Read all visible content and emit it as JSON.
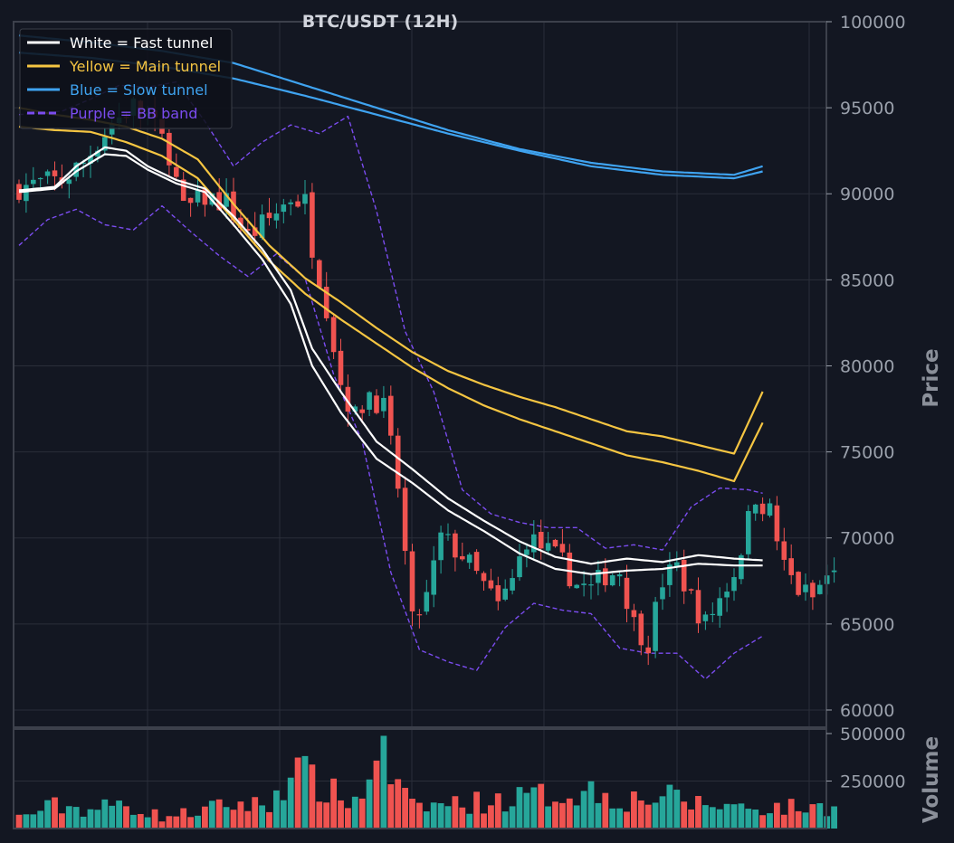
{
  "chart_data": {
    "type": "candlestick",
    "title": "BTC/USDT (12H)",
    "ylabel": "Price",
    "volume_label": "Volume",
    "ylim": [
      59000,
      100000
    ],
    "yticks": [
      60000,
      65000,
      70000,
      75000,
      80000,
      85000,
      90000,
      95000,
      100000
    ],
    "vol_ylim": [
      0,
      500000
    ],
    "vol_yticks": [
      250000,
      500000
    ],
    "grid": true,
    "legend_position": "top-left",
    "legend": [
      {
        "label": "White = Fast tunnel",
        "color": "#ffffff",
        "style": "solid"
      },
      {
        "label": "Yellow = Main tunnel",
        "color": "#f5c542",
        "style": "solid"
      },
      {
        "label": "Blue = Slow tunnel",
        "color": "#3fa3f0",
        "style": "solid"
      },
      {
        "label": "Purple = BB band",
        "color": "#7b4cf0",
        "style": "dashed"
      }
    ],
    "colors": {
      "up": "#26a69a",
      "down": "#ef5350",
      "bg": "#131722",
      "grid": "#2a2e39",
      "frame": "#3c404b"
    },
    "ohlc_knots": [
      [
        0,
        90400
      ],
      [
        3,
        90600
      ],
      [
        6,
        90800
      ],
      [
        9,
        91800
      ],
      [
        11,
        93000
      ],
      [
        13,
        94100
      ],
      [
        16,
        95100
      ],
      [
        18,
        94500
      ],
      [
        21,
        92400
      ],
      [
        23,
        89000
      ],
      [
        26,
        89800
      ],
      [
        29,
        89500
      ],
      [
        32,
        87500
      ],
      [
        35,
        88500
      ],
      [
        38,
        89800
      ],
      [
        40,
        89500
      ],
      [
        41,
        87000
      ],
      [
        43,
        83500
      ],
      [
        45,
        79000
      ],
      [
        47,
        77000
      ],
      [
        49,
        78500
      ],
      [
        51,
        77500
      ],
      [
        53,
        73000
      ],
      [
        55,
        65000
      ],
      [
        57,
        66500
      ],
      [
        59,
        70000
      ],
      [
        62,
        69000
      ],
      [
        65,
        67200
      ],
      [
        67,
        66000
      ],
      [
        69,
        67500
      ],
      [
        71,
        70000
      ],
      [
        73,
        69500
      ],
      [
        76,
        68500
      ],
      [
        78,
        67300
      ],
      [
        80,
        67000
      ],
      [
        82,
        67900
      ],
      [
        84,
        68100
      ],
      [
        86,
        65000
      ],
      [
        88,
        64000
      ],
      [
        90,
        67500
      ],
      [
        92,
        68300
      ],
      [
        94,
        66500
      ],
      [
        96,
        65000
      ],
      [
        98,
        66500
      ],
      [
        100,
        68000
      ],
      [
        103,
        72500
      ],
      [
        105,
        71500
      ],
      [
        107,
        68300
      ],
      [
        109,
        67000
      ],
      [
        111,
        66500
      ],
      [
        113,
        67800
      ]
    ],
    "fast_tunnel_upper": [
      [
        0,
        90200
      ],
      [
        5,
        90400
      ],
      [
        8,
        91600
      ],
      [
        12,
        92700
      ],
      [
        15,
        92500
      ],
      [
        18,
        91600
      ],
      [
        22,
        90800
      ],
      [
        26,
        90300
      ],
      [
        30,
        88700
      ],
      [
        34,
        86800
      ],
      [
        38,
        84400
      ],
      [
        41,
        81000
      ],
      [
        45,
        78500
      ],
      [
        50,
        75600
      ],
      [
        55,
        74000
      ],
      [
        60,
        72300
      ],
      [
        65,
        71000
      ],
      [
        70,
        69800
      ],
      [
        75,
        68900
      ],
      [
        80,
        68500
      ],
      [
        85,
        68800
      ],
      [
        90,
        68600
      ],
      [
        95,
        69000
      ],
      [
        100,
        68800
      ],
      [
        104,
        68700
      ]
    ],
    "fast_tunnel_lower": [
      [
        0,
        90100
      ],
      [
        5,
        90300
      ],
      [
        8,
        91300
      ],
      [
        12,
        92300
      ],
      [
        15,
        92200
      ],
      [
        18,
        91400
      ],
      [
        22,
        90600
      ],
      [
        26,
        90100
      ],
      [
        30,
        88200
      ],
      [
        34,
        86200
      ],
      [
        38,
        83600
      ],
      [
        41,
        80000
      ],
      [
        45,
        77300
      ],
      [
        50,
        74600
      ],
      [
        55,
        73200
      ],
      [
        60,
        71600
      ],
      [
        65,
        70400
      ],
      [
        70,
        69100
      ],
      [
        75,
        68200
      ],
      [
        80,
        67900
      ],
      [
        85,
        68100
      ],
      [
        90,
        68200
      ],
      [
        95,
        68500
      ],
      [
        100,
        68400
      ],
      [
        104,
        68400
      ]
    ],
    "main_tunnel_upper": [
      [
        0,
        95000
      ],
      [
        5,
        94600
      ],
      [
        10,
        94300
      ],
      [
        15,
        93900
      ],
      [
        20,
        93200
      ],
      [
        25,
        92000
      ],
      [
        30,
        89400
      ],
      [
        35,
        87000
      ],
      [
        40,
        85100
      ],
      [
        45,
        83700
      ],
      [
        50,
        82200
      ],
      [
        55,
        80800
      ],
      [
        60,
        79700
      ],
      [
        65,
        78900
      ],
      [
        70,
        78200
      ],
      [
        75,
        77600
      ],
      [
        80,
        76900
      ],
      [
        85,
        76200
      ],
      [
        90,
        75900
      ],
      [
        95,
        75400
      ],
      [
        100,
        74900
      ],
      [
        104,
        78500
      ]
    ],
    "main_tunnel_lower": [
      [
        0,
        93900
      ],
      [
        5,
        93700
      ],
      [
        10,
        93600
      ],
      [
        15,
        93000
      ],
      [
        20,
        92200
      ],
      [
        25,
        90900
      ],
      [
        30,
        88500
      ],
      [
        35,
        86100
      ],
      [
        40,
        84200
      ],
      [
        45,
        82700
      ],
      [
        50,
        81300
      ],
      [
        55,
        79900
      ],
      [
        60,
        78700
      ],
      [
        65,
        77700
      ],
      [
        70,
        76900
      ],
      [
        75,
        76200
      ],
      [
        80,
        75500
      ],
      [
        85,
        74800
      ],
      [
        90,
        74400
      ],
      [
        95,
        73900
      ],
      [
        100,
        73300
      ],
      [
        104,
        76700
      ]
    ],
    "slow_tunnel_upper": [
      [
        0,
        99200
      ],
      [
        10,
        98800
      ],
      [
        20,
        98300
      ],
      [
        30,
        97600
      ],
      [
        40,
        96300
      ],
      [
        50,
        95000
      ],
      [
        60,
        93700
      ],
      [
        70,
        92600
      ],
      [
        80,
        91800
      ],
      [
        90,
        91300
      ],
      [
        100,
        91100
      ],
      [
        104,
        91600
      ]
    ],
    "slow_tunnel_lower": [
      [
        0,
        98200
      ],
      [
        10,
        97900
      ],
      [
        20,
        97400
      ],
      [
        30,
        96700
      ],
      [
        40,
        95700
      ],
      [
        50,
        94600
      ],
      [
        60,
        93500
      ],
      [
        70,
        92500
      ],
      [
        80,
        91600
      ],
      [
        90,
        91100
      ],
      [
        100,
        90900
      ],
      [
        104,
        91300
      ]
    ],
    "bb_upper": [
      [
        0,
        94600
      ],
      [
        6,
        94800
      ],
      [
        10,
        95500
      ],
      [
        14,
        96300
      ],
      [
        18,
        96200
      ],
      [
        22,
        96500
      ],
      [
        26,
        94200
      ],
      [
        30,
        91600
      ],
      [
        34,
        93000
      ],
      [
        38,
        94000
      ],
      [
        42,
        93500
      ],
      [
        46,
        94500
      ],
      [
        50,
        89000
      ],
      [
        54,
        82000
      ],
      [
        58,
        78500
      ],
      [
        62,
        72800
      ],
      [
        66,
        71400
      ],
      [
        70,
        70900
      ],
      [
        74,
        70600
      ],
      [
        78,
        70600
      ],
      [
        82,
        69400
      ],
      [
        86,
        69600
      ],
      [
        90,
        69300
      ],
      [
        94,
        71800
      ],
      [
        98,
        72900
      ],
      [
        102,
        72800
      ],
      [
        104,
        72600
      ]
    ],
    "bb_lower": [
      [
        0,
        87000
      ],
      [
        4,
        88500
      ],
      [
        8,
        89100
      ],
      [
        12,
        88200
      ],
      [
        16,
        87900
      ],
      [
        20,
        89300
      ],
      [
        24,
        87800
      ],
      [
        28,
        86400
      ],
      [
        32,
        85200
      ],
      [
        36,
        86500
      ],
      [
        40,
        85100
      ],
      [
        44,
        79500
      ],
      [
        48,
        75600
      ],
      [
        52,
        68000
      ],
      [
        56,
        63500
      ],
      [
        60,
        62800
      ],
      [
        64,
        62300
      ],
      [
        68,
        64800
      ],
      [
        72,
        66200
      ],
      [
        76,
        65800
      ],
      [
        80,
        65600
      ],
      [
        84,
        63600
      ],
      [
        88,
        63300
      ],
      [
        92,
        63300
      ],
      [
        96,
        61800
      ],
      [
        100,
        63300
      ],
      [
        104,
        64300
      ]
    ],
    "volume_knots": [
      [
        0,
        60000
      ],
      [
        5,
        120000
      ],
      [
        10,
        100000
      ],
      [
        15,
        130000
      ],
      [
        20,
        60000
      ],
      [
        25,
        90000
      ],
      [
        30,
        130000
      ],
      [
        35,
        120000
      ],
      [
        38,
        330000
      ],
      [
        40,
        270000
      ],
      [
        45,
        160000
      ],
      [
        48,
        150000
      ],
      [
        50,
        470000
      ],
      [
        52,
        270000
      ],
      [
        55,
        110000
      ],
      [
        60,
        130000
      ],
      [
        65,
        140000
      ],
      [
        70,
        160000
      ],
      [
        75,
        180000
      ],
      [
        80,
        200000
      ],
      [
        85,
        150000
      ],
      [
        90,
        170000
      ],
      [
        95,
        130000
      ],
      [
        100,
        120000
      ],
      [
        104,
        110000
      ]
    ]
  }
}
